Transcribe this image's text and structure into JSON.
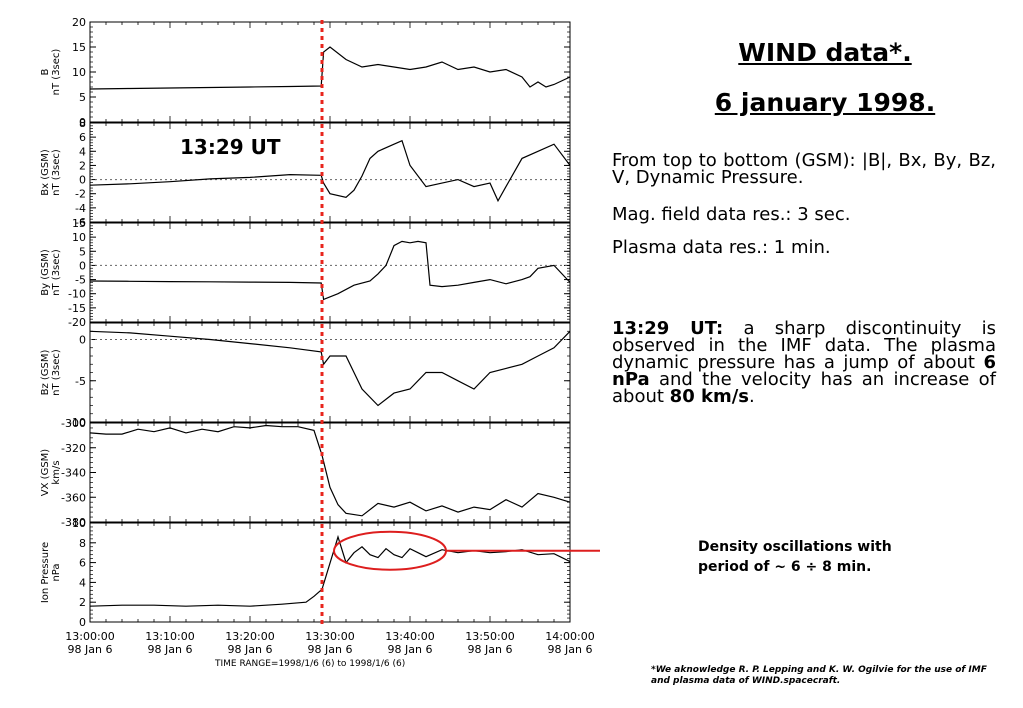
{
  "title_line1": "WIND data*.",
  "title_line2": "6 january 1998.",
  "desc_order": "From top to bottom (GSM): |B|, Bx, By, Bz, V, Dynamic Pressure.",
  "desc_mag": "Mag. field data res.: 3 sec.",
  "desc_plasma": "Plasma data res.: 1 min.",
  "disc_label": "13:29 UT:",
  "disc_text_a": "a sharp discontinuity is observed in the IMF data. The plasma dynamic pressure has a jump of about",
  "disc_val1": "6 nPa",
  "disc_text_b": "and the velocity has an increase of about",
  "disc_val2": "80 km/s",
  "disc_end": ".",
  "event_label": "13:29 UT",
  "annotation": "Density oscillations with period of ~ 6 ÷ 8 min.",
  "footnote": "*We aknowledge R. P. Lepping and K. W. Ogilvie for the use of IMF and plasma data of WIND.spacecraft.",
  "time_range": "TIME RANGE=1998/1/6 (6) to 1998/1/6 (6)",
  "colors": {
    "event_line": "#e8241c",
    "annotation": "#dd1e1e",
    "trace": "#000000",
    "zero_line": "#666666"
  },
  "chart_data": {
    "type": "line",
    "x_unit": "UT",
    "x_range": [
      "13:00:00",
      "14:00:00"
    ],
    "x_ticks": [
      {
        "time": "13:00:00",
        "date": "98 Jan  6"
      },
      {
        "time": "13:10:00",
        "date": "98 Jan  6"
      },
      {
        "time": "13:20:00",
        "date": "98 Jan  6"
      },
      {
        "time": "13:30:00",
        "date": "98 Jan  6"
      },
      {
        "time": "13:40:00",
        "date": "98 Jan  6"
      },
      {
        "time": "13:50:00",
        "date": "98 Jan  6"
      },
      {
        "time": "14:00:00",
        "date": "98 Jan  6"
      }
    ],
    "event_time_min": 29,
    "panels": [
      {
        "ylabel": [
          "B",
          "nT (3sec)"
        ],
        "ylim": [
          0,
          20
        ],
        "ticks": [
          0,
          5,
          10,
          15,
          20
        ],
        "zero_line": false,
        "x": [
          0,
          5,
          10,
          15,
          20,
          25,
          28.9,
          29.2,
          30,
          32,
          34,
          36,
          38,
          40,
          42,
          44,
          46,
          48,
          50,
          52,
          54,
          55,
          56,
          57,
          58,
          60
        ],
        "y": [
          6.6,
          6.7,
          6.8,
          6.9,
          7,
          7.1,
          7.2,
          14,
          15,
          12.5,
          11,
          11.5,
          11,
          10.5,
          11,
          12,
          10.5,
          11,
          10,
          10.5,
          9,
          7,
          8,
          7,
          7.5,
          9
        ]
      },
      {
        "ylabel": [
          "Bx (GSM)",
          "nT (3sec)"
        ],
        "ylim": [
          -6,
          8
        ],
        "ticks": [
          -6,
          -4,
          -2,
          0,
          2,
          4,
          6,
          8
        ],
        "zero_line": true,
        "x": [
          0,
          5,
          10,
          15,
          20,
          25,
          28.9,
          29.2,
          30,
          32,
          33,
          34,
          35,
          36,
          38,
          39,
          40,
          42,
          44,
          46,
          48,
          50,
          51,
          52,
          54,
          56,
          58,
          60
        ],
        "y": [
          -0.8,
          -0.6,
          -0.3,
          0.1,
          0.3,
          0.7,
          0.6,
          -0.5,
          -2,
          -2.5,
          -1.5,
          0.5,
          3,
          4,
          5,
          5.5,
          2,
          -1,
          -0.5,
          0,
          -1,
          -0.5,
          -3,
          -1,
          3,
          4,
          5,
          2
        ]
      },
      {
        "ylabel": [
          "By (GSM)",
          "nT (3sec)"
        ],
        "ylim": [
          -20,
          15
        ],
        "ticks": [
          -20,
          -15,
          -10,
          -5,
          0,
          5,
          10,
          15
        ],
        "zero_line": true,
        "x": [
          0,
          5,
          10,
          15,
          20,
          25,
          28.9,
          29.2,
          31,
          33,
          35,
          36,
          37,
          38,
          39,
          40,
          41,
          42,
          42.5,
          44,
          46,
          48,
          50,
          52,
          54,
          55,
          56,
          58,
          60
        ],
        "y": [
          -5.5,
          -5.6,
          -5.7,
          -5.8,
          -5.9,
          -6,
          -6.2,
          -12,
          -10,
          -7,
          -5.5,
          -3,
          0,
          7,
          8.5,
          8,
          8.5,
          8,
          -7,
          -7.5,
          -7,
          -6,
          -5,
          -6.5,
          -5,
          -4,
          -1,
          0,
          -6
        ]
      },
      {
        "ylabel": [
          "Bz (GSM)",
          "nT (3sec)"
        ],
        "ylim": [
          -10,
          2
        ],
        "ticks": [
          -10,
          -5,
          0
        ],
        "zero_line": true,
        "x": [
          0,
          5,
          10,
          15,
          20,
          25,
          28.9,
          29.2,
          30,
          32,
          34,
          36,
          38,
          40,
          42,
          44,
          46,
          48,
          50,
          52,
          54,
          56,
          58,
          60
        ],
        "y": [
          1,
          0.8,
          0.4,
          0,
          -0.5,
          -1,
          -1.5,
          -3,
          -2,
          -2,
          -6,
          -8,
          -6.5,
          -6,
          -4,
          -4,
          -5,
          -6,
          -4,
          -3.5,
          -3,
          -2,
          -1,
          1
        ]
      },
      {
        "ylabel": [
          "VX (GSM)",
          "km/s"
        ],
        "ylim": [
          -380,
          -300
        ],
        "ticks": [
          -380,
          -360,
          -340,
          -320,
          -300
        ],
        "zero_line": false,
        "x": [
          0,
          2,
          4,
          6,
          8,
          10,
          12,
          14,
          16,
          18,
          20,
          22,
          24,
          26,
          28,
          29,
          30,
          31,
          32,
          34,
          36,
          38,
          40,
          42,
          44,
          46,
          48,
          50,
          52,
          54,
          56,
          58,
          60
        ],
        "y": [
          -308,
          -309,
          -309,
          -305,
          -307,
          -304,
          -308,
          -305,
          -307,
          -303,
          -304,
          -302,
          -303,
          -303,
          -306,
          -326,
          -352,
          -366,
          -373,
          -375,
          -365,
          -368,
          -364,
          -371,
          -367,
          -372,
          -368,
          -370,
          -362,
          -368,
          -357,
          -360,
          -364
        ]
      },
      {
        "ylabel": [
          "Ion Pressure",
          "nPa"
        ],
        "ylim": [
          0,
          10
        ],
        "ticks": [
          0,
          2,
          4,
          6,
          8,
          10
        ],
        "zero_line": false,
        "x": [
          0,
          4,
          8,
          12,
          16,
          20,
          24,
          27,
          28,
          29,
          31,
          32,
          33,
          34,
          35,
          36,
          37,
          38,
          39,
          40,
          41,
          42,
          44,
          46,
          48,
          50,
          52,
          54,
          56,
          58,
          60
        ],
        "y": [
          1.6,
          1.7,
          1.7,
          1.6,
          1.7,
          1.6,
          1.8,
          2,
          2.6,
          3.3,
          8.6,
          6,
          7,
          7.6,
          6.8,
          6.5,
          7.4,
          6.8,
          6.5,
          7.4,
          7,
          6.6,
          7.3,
          7,
          7.2,
          7,
          7.1,
          7.3,
          6.8,
          6.9,
          6.1
        ]
      }
    ]
  }
}
